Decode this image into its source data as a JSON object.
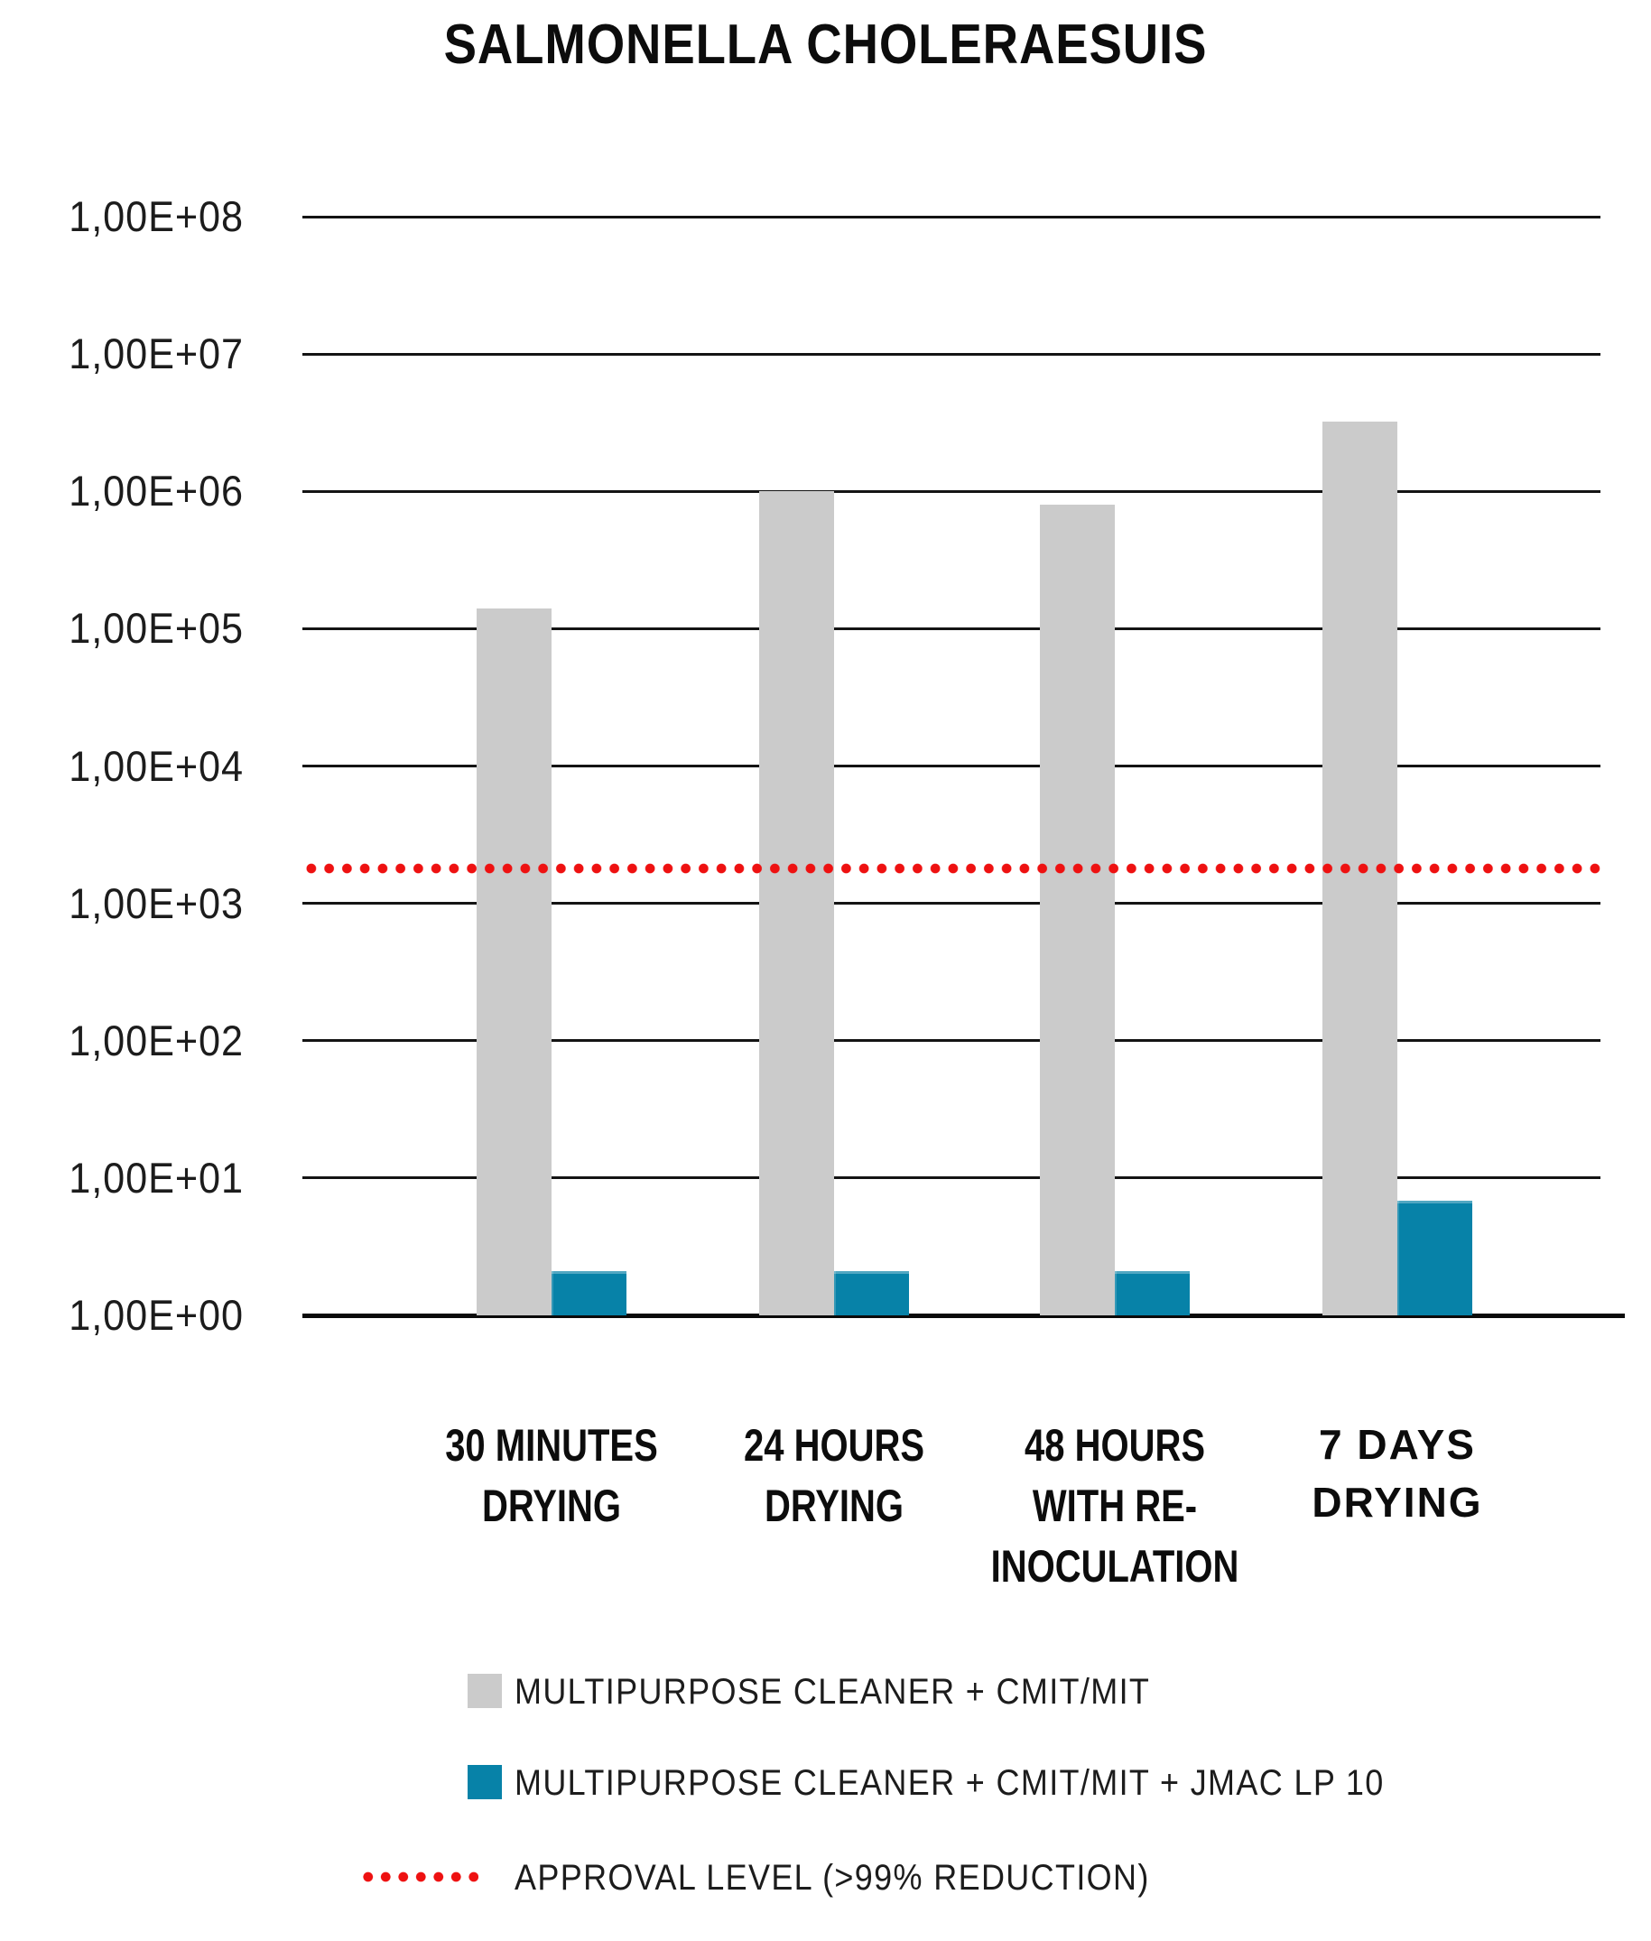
{
  "title": "SALMONELLA CHOLERAESUIS",
  "chart_data": {
    "type": "bar",
    "title": "SALMONELLA CHOLERAESUIS",
    "y_scale": "log10",
    "ylim": [
      1,
      100000000
    ],
    "y_tick_labels": [
      "1,00E+00",
      "1,00E+01",
      "1,00E+02",
      "1,00E+03",
      "1,00E+04",
      "1,00E+05",
      "1,00E+06",
      "1,00E+07",
      "1,00E+08"
    ],
    "categories": [
      "30 MINUTES DRYING",
      "24 HOURS DRYING",
      "48 HOURS WITH RE-INOCULATION",
      "7 DAYS DRYING"
    ],
    "categories_display": [
      "30 MINUTES\nDRYING",
      "24 HOURS\nDRYING",
      "48 HOURS\nWITH RE-\nINOCULATION",
      "7 DAYS\nDRYING"
    ],
    "series": [
      {
        "name": "MULTIPURPOSE CLEANER + CMIT/MIT",
        "color": "#cbcbcb",
        "values": [
          140000,
          1000000,
          800000,
          3200000
        ]
      },
      {
        "name": "MULTIPURPOSE CLEANER + CMIT/MIT + JMAC LP 10",
        "color": "#0782a8",
        "values": [
          2.1,
          2.1,
          2.1,
          6.8
        ]
      }
    ],
    "reference_line": {
      "label": "APPROVAL LEVEL (>99% REDUCTION)",
      "value": 1800,
      "color": "#ee1111",
      "style": "dotted"
    },
    "grid": true,
    "legend_position": "bottom"
  },
  "legend": {
    "items": [
      {
        "swatch": "gray-square",
        "label": "MULTIPURPOSE CLEANER + CMIT/MIT"
      },
      {
        "swatch": "blue-square",
        "label": "MULTIPURPOSE CLEANER + CMIT/MIT + JMAC LP 10"
      },
      {
        "swatch": "red-dots",
        "label": "APPROVAL LEVEL (>99% REDUCTION)"
      }
    ]
  },
  "colors": {
    "series_1": "#cbcbcb",
    "series_2": "#0782a8",
    "approval_line": "#ee1111",
    "grid": "#141414",
    "text": "#111111",
    "background": "#ffffff"
  }
}
